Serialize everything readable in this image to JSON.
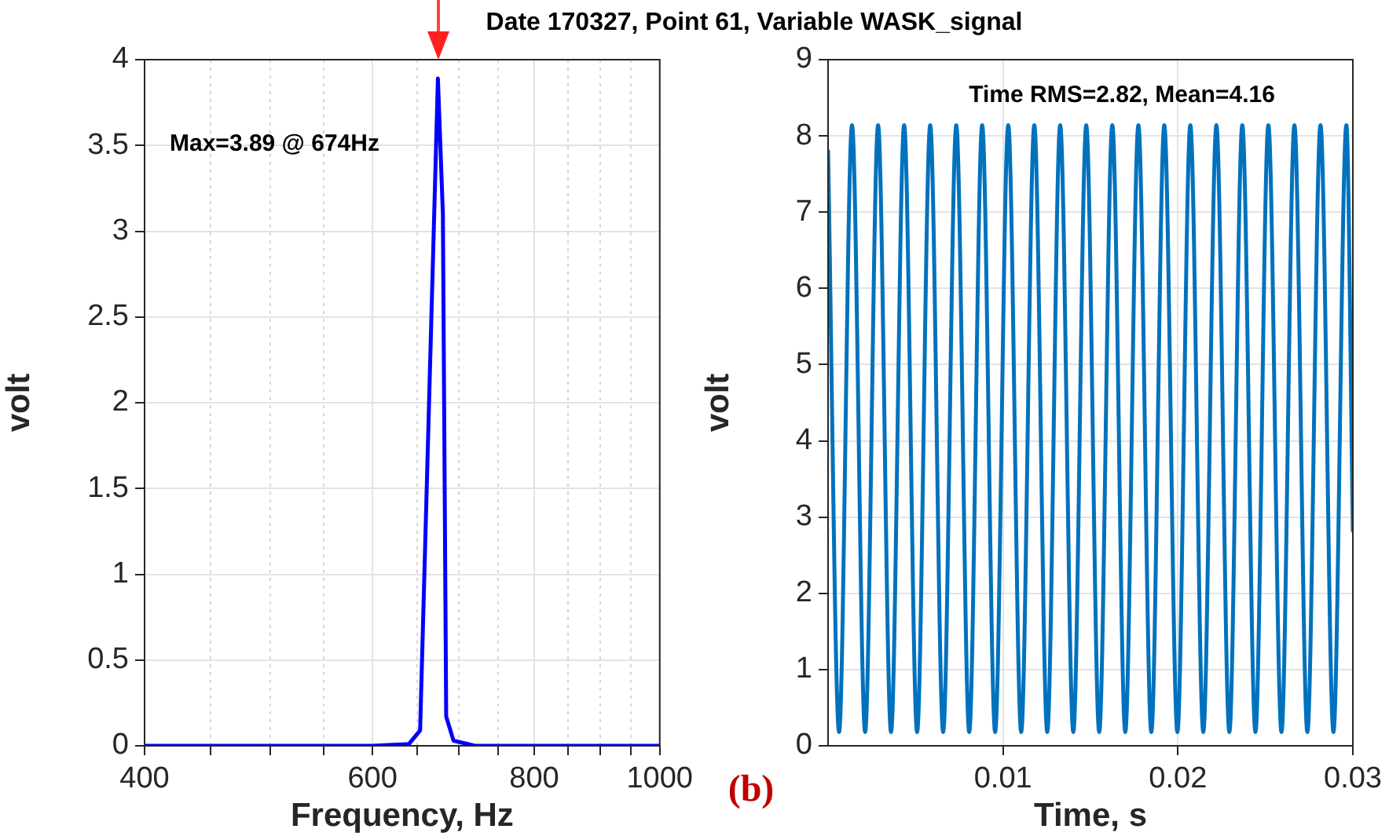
{
  "chart_data": [
    {
      "type": "line",
      "xlabel": "Frequency, Hz",
      "ylabel": "volt",
      "log": "x",
      "grid": true,
      "legend": false,
      "marker": "none",
      "line_style": "solid",
      "annotations": [
        "Max=3.89 @ 674Hz",
        "(b)"
      ],
      "xlim": [
        400,
        1000
      ],
      "xticks": [
        400,
        {
          "value": 450,
          "label": null
        },
        {
          "value": 500,
          "label": null
        },
        {
          "value": 550,
          "label": null
        },
        600,
        {
          "value": 650,
          "label": null
        },
        {
          "value": 700,
          "label": null
        },
        {
          "value": 750,
          "label": null
        },
        800,
        {
          "value": 850,
          "label": null
        },
        {
          "value": 900,
          "label": null
        },
        {
          "value": 950,
          "label": null
        },
        1000
      ],
      "ylim": [
        0,
        4
      ],
      "yticks": [
        0,
        0.5,
        1,
        1.5,
        2,
        2.5,
        3,
        3.5,
        4
      ],
      "series": [
        {
          "color": "#0000ff",
          "x": [
            400,
            500,
            600,
            640,
            653,
            674,
            680,
            684,
            693,
            720,
            800,
            1000
          ],
          "values": [
            0,
            0,
            0,
            0.01,
            0.09,
            3.89,
            3.1,
            0.17,
            0.03,
            0,
            0,
            0
          ]
        }
      ]
    },
    {
      "type": "line",
      "title": "Date 170327, Point 61, Variable WASK_signal",
      "xlabel": "Time, s",
      "ylabel": "volt",
      "grid": true,
      "legend": false,
      "marker": "none",
      "line_style": "solid",
      "annotations": [
        "Time RMS=2.82, Mean=4.16"
      ],
      "xlim": [
        0,
        0.03
      ],
      "xticks": [
        0.01,
        0.02,
        0.03
      ],
      "ylim": [
        0,
        9
      ],
      "yticks": [
        0,
        1,
        2,
        3,
        4,
        5,
        6,
        7,
        8,
        9
      ],
      "series": [
        {
          "color": "#0072bd",
          "x": [
            0,
            0.00063,
            0.00137,
            0.00212,
            0.00286,
            0.0036,
            0.00435,
            0.00509,
            0.00584,
            0.00658,
            0.00733,
            0.00807,
            0.00881,
            0.00955,
            0.0103,
            0.01104,
            0.01179,
            0.01253,
            0.01327,
            0.01402,
            0.01476,
            0.0155,
            0.01625,
            0.01699,
            0.01774,
            0.01848,
            0.01922,
            0.01997,
            0.02071,
            0.02145,
            0.0222,
            0.02294,
            0.02368,
            0.02443,
            0.02517,
            0.02592,
            0.02666,
            0.0274,
            0.02815,
            0.02889,
            0.02963,
            0.03
          ],
          "values": [
            7.8,
            0.18,
            8.14,
            0.18,
            8.14,
            0.18,
            8.14,
            0.18,
            8.14,
            0.18,
            8.14,
            0.18,
            8.14,
            0.18,
            8.14,
            0.18,
            8.14,
            0.18,
            8.14,
            0.18,
            8.14,
            0.18,
            8.14,
            0.18,
            8.14,
            0.18,
            8.14,
            0.18,
            8.14,
            0.18,
            8.14,
            0.18,
            8.14,
            0.18,
            8.14,
            0.18,
            8.14,
            0.18,
            8.14,
            0.18,
            8.14,
            2.82
          ]
        }
      ]
    }
  ]
}
